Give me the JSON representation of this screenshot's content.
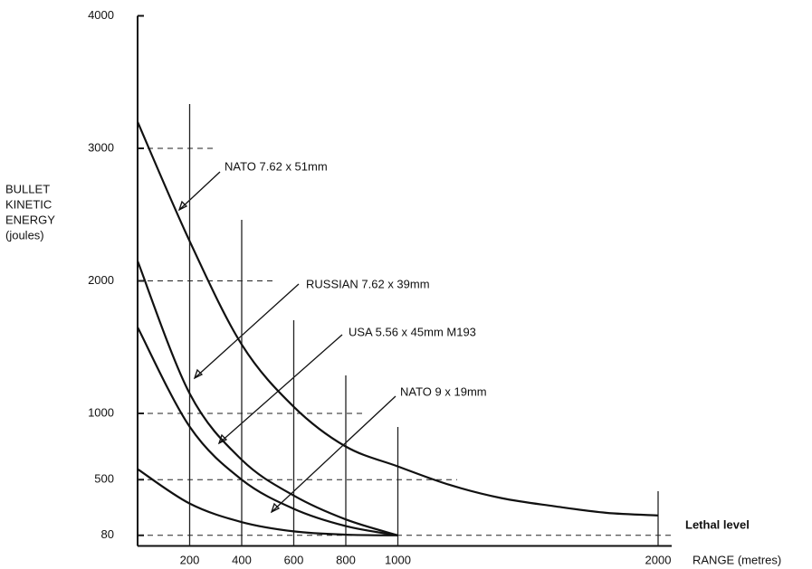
{
  "chart_data": {
    "type": "line",
    "ylabel": [
      "BULLET",
      "KINETIC",
      "ENERGY",
      "(joules)"
    ],
    "xlabel": "RANGE (metres)",
    "annotation": "Lethal level",
    "xlim": [
      0,
      2000
    ],
    "ylim": [
      0,
      4000
    ],
    "xticks": [
      200,
      400,
      600,
      800,
      1000,
      2000
    ],
    "yticks": [
      80,
      500,
      1000,
      2000,
      3000,
      4000
    ],
    "grid": true,
    "series": [
      {
        "name": "NATO 7.62 x 51mm",
        "color": "#111111",
        "x": [
          0,
          200,
          400,
          600,
          800,
          1000,
          1200,
          1400,
          1600,
          1800,
          2000
        ],
        "values": [
          3200,
          2300,
          1520,
          1050,
          750,
          600,
          460,
          360,
          300,
          250,
          230
        ]
      },
      {
        "name": "RUSSIAN 7.62 x 39mm",
        "color": "#111111",
        "x": [
          0,
          200,
          400,
          600,
          800,
          1000
        ],
        "values": [
          2150,
          1150,
          650,
          380,
          200,
          80
        ]
      },
      {
        "name": "USA 5.56 x 45mm M193",
        "color": "#111111",
        "x": [
          0,
          200,
          400,
          600,
          800,
          1000
        ],
        "values": [
          1650,
          900,
          500,
          280,
          150,
          80
        ]
      },
      {
        "name": "NATO 9 x 19mm",
        "color": "#111111",
        "x": [
          0,
          200,
          400,
          600,
          800,
          1000
        ],
        "values": [
          580,
          320,
          180,
          110,
          85,
          80
        ]
      }
    ]
  }
}
